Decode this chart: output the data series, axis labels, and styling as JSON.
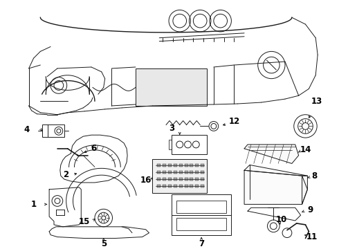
{
  "background_color": "#ffffff",
  "line_color": "#1a1a1a",
  "label_color": "#000000",
  "figsize": [
    4.9,
    3.6
  ],
  "dpi": 100,
  "font_size": 8.5
}
